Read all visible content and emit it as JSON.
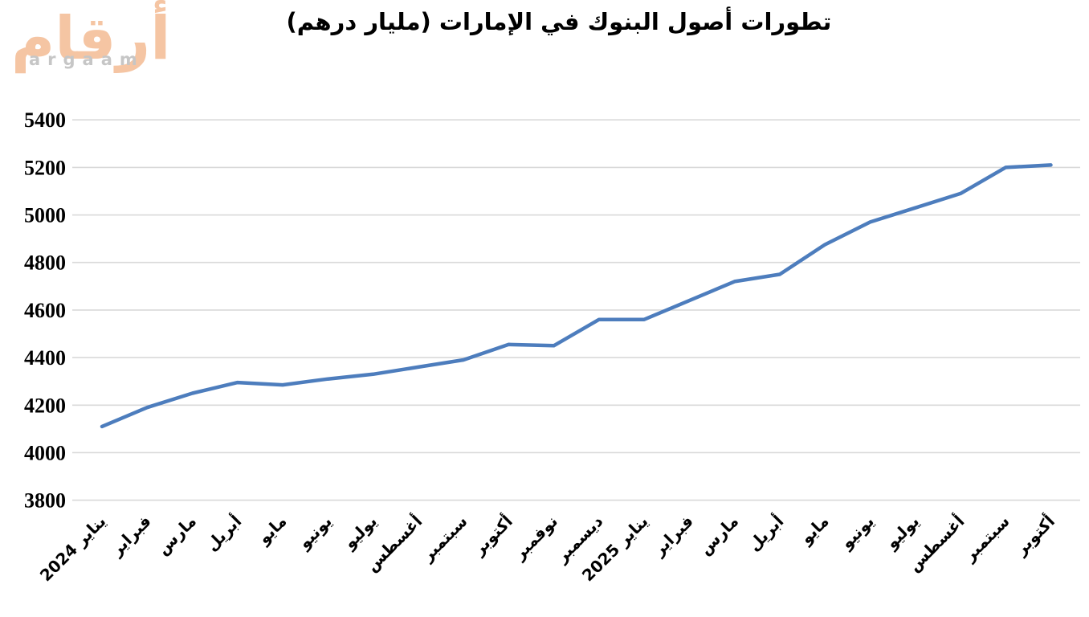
{
  "logo": {
    "arabic": "أرقام",
    "latin": "argaam",
    "arabic_color": "#f5c5a3",
    "latin_color": "#c6c6c6"
  },
  "chart_data": {
    "type": "line",
    "title": "تطورات أصول البنوك في الإمارات (مليار درهم)",
    "categories": [
      "يناير 2024",
      "فبراير",
      "مارس",
      "أبريل",
      "مايو",
      "يونيو",
      "يوليو",
      "أغسطس",
      "سبتمبر",
      "أكتوبر",
      "نوفمبر",
      "ديسمبر",
      "يناير 2025",
      "فبراير",
      "مارس",
      "أبريل",
      "مايو",
      "يونيو",
      "يوليو",
      "أغسطس",
      "سبتمبر",
      "أكتوبر"
    ],
    "values": [
      4110,
      4190,
      4250,
      4295,
      4285,
      4310,
      4330,
      4360,
      4390,
      4455,
      4450,
      4560,
      4560,
      4640,
      4720,
      4750,
      4875,
      4970,
      5030,
      5090,
      5200,
      5210
    ],
    "xlabel": "",
    "ylabel": "",
    "ylim": [
      3800,
      5400
    ],
    "ytick_step": 200,
    "grid": true,
    "legend": "none",
    "line_color": "#4d7dbd",
    "gridline_color": "#d9d9d9",
    "label_color": "#000000"
  }
}
